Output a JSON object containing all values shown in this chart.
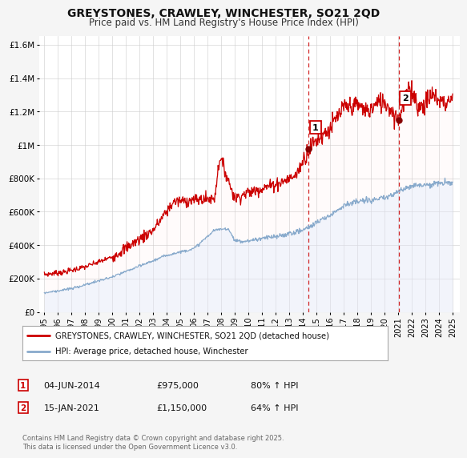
{
  "title": "GREYSTONES, CRAWLEY, WINCHESTER, SO21 2QD",
  "subtitle": "Price paid vs. HM Land Registry's House Price Index (HPI)",
  "background_color": "#f5f5f5",
  "plot_bg_color": "#ffffff",
  "grid_color": "#cccccc",
  "red_line_color": "#cc0000",
  "blue_line_color": "#88aacc",
  "blue_fill_color": "#ddeeff",
  "vline_color": "#cc0000",
  "marker1_date": 2014.42,
  "marker2_date": 2021.04,
  "marker1_value": 975000,
  "marker2_value": 1150000,
  "annotation1": "04-JUN-2014",
  "annotation1_price": "£975,000",
  "annotation1_hpi": "80% ↑ HPI",
  "annotation2": "15-JAN-2021",
  "annotation2_price": "£1,150,000",
  "annotation2_hpi": "64% ↑ HPI",
  "legend_label1": "GREYSTONES, CRAWLEY, WINCHESTER, SO21 2QD (detached house)",
  "legend_label2": "HPI: Average price, detached house, Winchester",
  "footer": "Contains HM Land Registry data © Crown copyright and database right 2025.\nThis data is licensed under the Open Government Licence v3.0.",
  "ylim": [
    0,
    1650000
  ],
  "yticks": [
    0,
    200000,
    400000,
    600000,
    800000,
    1000000,
    1200000,
    1400000,
    1600000
  ],
  "ytick_labels": [
    "£0",
    "£200K",
    "£400K",
    "£600K",
    "£800K",
    "£1M",
    "£1.2M",
    "£1.4M",
    "£1.6M"
  ],
  "xlim_start": 1994.6,
  "xlim_end": 2025.5,
  "xtick_years": [
    1995,
    1996,
    1997,
    1998,
    1999,
    2000,
    2001,
    2002,
    2003,
    2004,
    2005,
    2006,
    2007,
    2008,
    2009,
    2010,
    2011,
    2012,
    2013,
    2014,
    2015,
    2016,
    2017,
    2018,
    2019,
    2020,
    2021,
    2022,
    2023,
    2024,
    2025
  ]
}
